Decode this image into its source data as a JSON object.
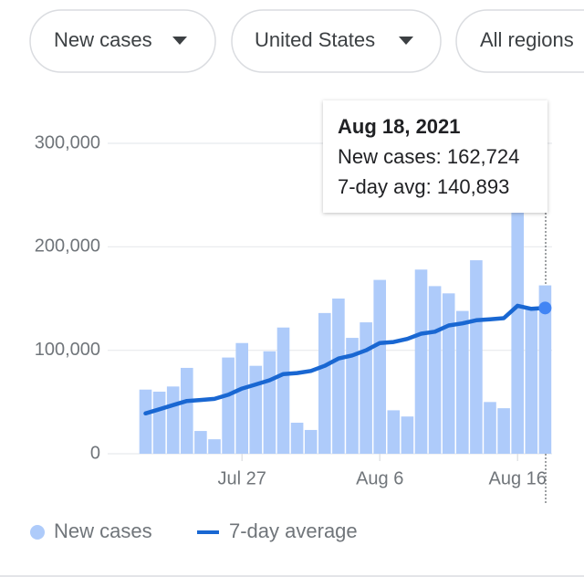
{
  "filters": [
    "New cases",
    "United States",
    "All regions"
  ],
  "chart_data": {
    "type": "bar",
    "categories": [
      null,
      null,
      null,
      null,
      null,
      null,
      null,
      "Jul 27",
      null,
      null,
      null,
      null,
      null,
      null,
      null,
      null,
      null,
      "Aug 6",
      null,
      null,
      null,
      null,
      null,
      null,
      null,
      null,
      null,
      "Aug 16",
      null,
      null
    ],
    "series": [
      {
        "name": "New cases",
        "type": "bar",
        "color": "#aecbfa",
        "values": [
          62000,
          60000,
          65000,
          83000,
          22000,
          14000,
          93000,
          107000,
          85000,
          99000,
          122000,
          30000,
          23000,
          136000,
          150000,
          112000,
          127000,
          168000,
          42000,
          36000,
          178000,
          162000,
          155000,
          138000,
          187000,
          50000,
          44000,
          235000,
          141000,
          162724
        ]
      },
      {
        "name": "7-day average",
        "type": "line",
        "color": "#1967d2",
        "values": [
          39000,
          43000,
          47000,
          51000,
          52000,
          53000,
          57000,
          63000,
          67000,
          71000,
          77000,
          78000,
          80000,
          85000,
          92000,
          95000,
          100000,
          107000,
          108000,
          111000,
          116000,
          118000,
          124000,
          126000,
          129000,
          130000,
          131000,
          143000,
          140000,
          140893
        ]
      }
    ],
    "ylim": [
      0,
      300000
    ],
    "yticks": [
      0,
      {
        "value": 100000,
        "label": "100,000"
      },
      {
        "value": 200000,
        "label": "200,000"
      },
      {
        "value": 300000,
        "label": "300,000"
      }
    ],
    "grid": true,
    "legend": "bottom",
    "tooltip": {
      "title": "Aug 18, 2021",
      "lines": [
        {
          "label": "New cases:",
          "value_label": "162,724"
        },
        {
          "label": "7-day avg:",
          "value_label": "140,893"
        }
      ]
    }
  }
}
